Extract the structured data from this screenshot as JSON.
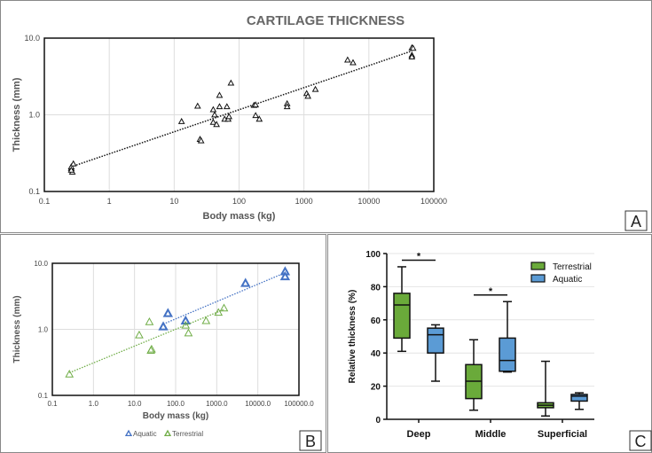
{
  "chart_data": [
    {
      "panel": "A",
      "type": "scatter",
      "title": "CARTILAGE THICKNESS",
      "xlabel": "Body mass (kg)",
      "ylabel": "Thickness (mm)",
      "xscale": "log",
      "yscale": "log",
      "xlim": [
        0.1,
        100000
      ],
      "ylim": [
        0.1,
        10
      ],
      "xticks": [
        "0.1",
        "1",
        "10",
        "100",
        "1000",
        "10000",
        "100000"
      ],
      "yticks": [
        "0.1",
        "1.0",
        "10.0"
      ],
      "points": [
        [
          0.26,
          0.2
        ],
        [
          0.26,
          0.21
        ],
        [
          0.27,
          0.18
        ],
        [
          0.26,
          0.19
        ],
        [
          0.28,
          0.23
        ],
        [
          13,
          0.82
        ],
        [
          23,
          1.3
        ],
        [
          25,
          0.48
        ],
        [
          26,
          0.46
        ],
        [
          40,
          1.17
        ],
        [
          42,
          1.0
        ],
        [
          40,
          0.8
        ],
        [
          45,
          0.75
        ],
        [
          50,
          1.8
        ],
        [
          50,
          1.28
        ],
        [
          60,
          0.88
        ],
        [
          65,
          1.28
        ],
        [
          68,
          0.88
        ],
        [
          70,
          0.95
        ],
        [
          75,
          2.6
        ],
        [
          170,
          1.33
        ],
        [
          180,
          1.35
        ],
        [
          180,
          0.98
        ],
        [
          205,
          0.88
        ],
        [
          550,
          1.4
        ],
        [
          550,
          1.28
        ],
        [
          1100,
          1.9
        ],
        [
          1150,
          1.75
        ],
        [
          1500,
          2.15
        ],
        [
          4700,
          5.2
        ],
        [
          5700,
          4.8
        ],
        [
          46000,
          7.5
        ],
        [
          48000,
          7.4
        ],
        [
          46000,
          6.0
        ],
        [
          46000,
          5.7
        ]
      ],
      "trendline": [
        [
          0.26,
          0.21
        ],
        [
          46000,
          6.8
        ]
      ],
      "panel_label": "A"
    },
    {
      "panel": "B",
      "type": "scatter",
      "xlabel": "Body mass (kg)",
      "ylabel": "Thickness (mm)",
      "xscale": "log",
      "yscale": "log",
      "xlim": [
        0.1,
        100000
      ],
      "ylim": [
        0.1,
        10
      ],
      "xticks": [
        "0.1",
        "1.0",
        "10.0",
        "100.0",
        "1000.0",
        "10000.0",
        "100000.0"
      ],
      "yticks": [
        "0.1",
        "1.0",
        "10.0"
      ],
      "legend_position": "bottom",
      "series": [
        {
          "name": "Aquatic",
          "color": "#4472c4",
          "points": [
            [
              50,
              1.1
            ],
            [
              65,
              1.75
            ],
            [
              175,
              1.35
            ],
            [
              5000,
              5.0
            ],
            [
              46000,
              7.5
            ],
            [
              46000,
              6.3
            ]
          ],
          "trendline": [
            [
              50,
              1.2
            ],
            [
              46000,
              7.2
            ]
          ]
        },
        {
          "name": "Terrestrial",
          "color": "#70ad47",
          "points": [
            [
              0.26,
              0.21
            ],
            [
              13,
              0.82
            ],
            [
              23,
              1.3
            ],
            [
              25,
              0.48
            ],
            [
              26,
              0.5
            ],
            [
              175,
              1.15
            ],
            [
              205,
              0.88
            ],
            [
              550,
              1.35
            ],
            [
              1100,
              1.8
            ],
            [
              1500,
              2.1
            ]
          ],
          "trendline": [
            [
              0.26,
              0.22
            ],
            [
              1500,
              2.0
            ]
          ]
        }
      ],
      "panel_label": "B"
    },
    {
      "panel": "C",
      "type": "box",
      "ylabel": "Relative thickness (%)",
      "ylim": [
        0,
        100
      ],
      "yticks": [
        "0",
        "20",
        "40",
        "60",
        "80",
        "100"
      ],
      "categories": [
        "Deep",
        "Middle",
        "Superficial"
      ],
      "legend_position": "top-right",
      "series": [
        {
          "name": "Terrestrial",
          "color": "#6aaa3a",
          "boxes": [
            [
              41,
              49,
              69,
              76,
              92
            ],
            [
              5.5,
              12.5,
              23,
              33,
              48
            ],
            [
              2,
              7,
              8.5,
              10,
              35
            ]
          ]
        },
        {
          "name": "Aquatic",
          "color": "#5b9bd5",
          "boxes": [
            [
              23,
              40,
              51,
              55,
              57
            ],
            [
              28.5,
              29,
              35.5,
              49,
              71
            ],
            [
              6,
              11,
              14,
              15,
              16
            ]
          ]
        }
      ],
      "significance": [
        {
          "category": "Deep",
          "y": 96,
          "label": "*"
        },
        {
          "category": "Middle",
          "y": 75,
          "label": "*"
        }
      ],
      "panel_label": "C"
    }
  ]
}
